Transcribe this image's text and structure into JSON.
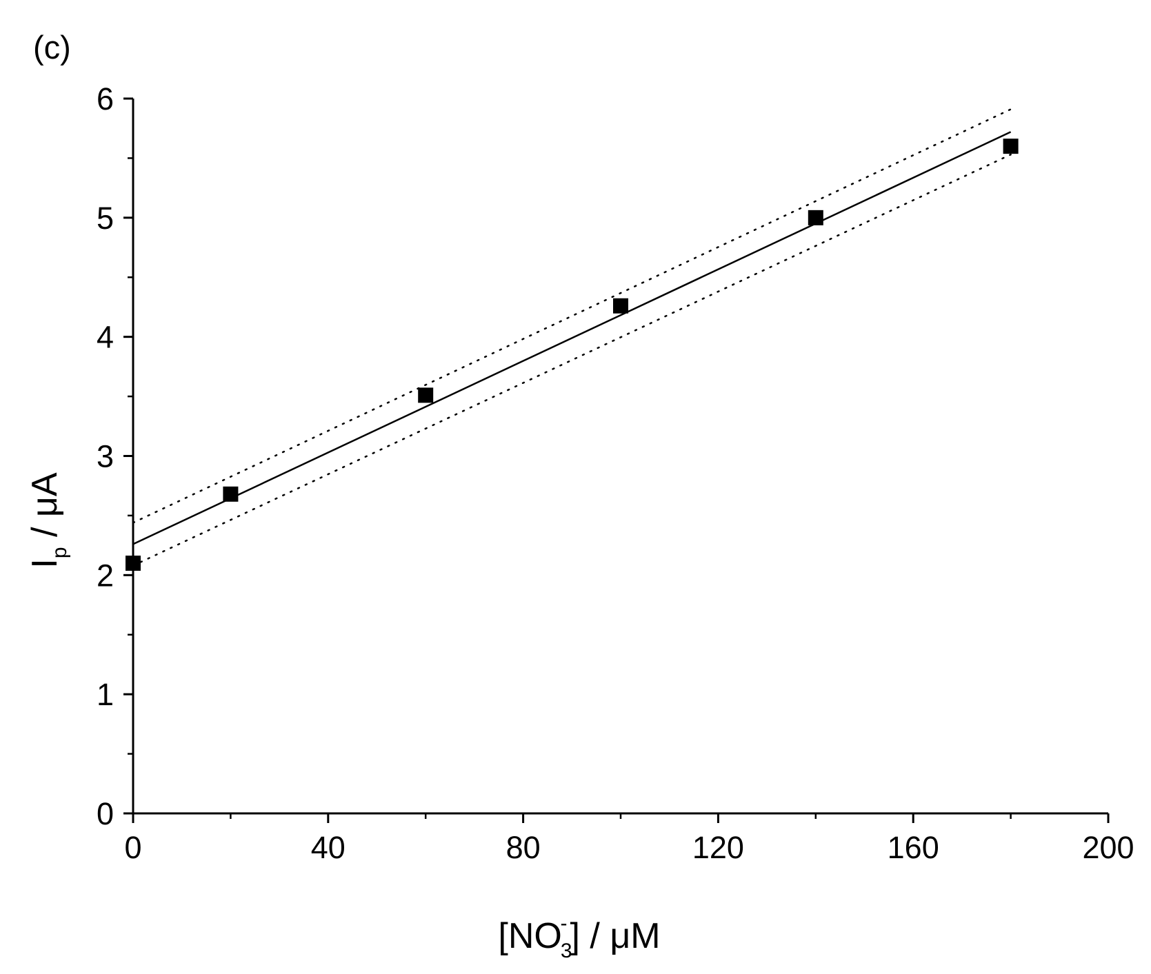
{
  "panel_label": "(c)",
  "chart_data": {
    "type": "scatter",
    "xlabel": {
      "pre": "[NO",
      "sup": "-",
      "sub": "3",
      "post": "] / μM"
    },
    "ylabel": {
      "main": "I",
      "sub": "p",
      "post": " / μA"
    },
    "xlim": [
      0,
      200
    ],
    "ylim": [
      0,
      6
    ],
    "xticks": [
      "0",
      "40",
      "80",
      "120",
      "160",
      "200"
    ],
    "yticks": [
      "0",
      "1",
      "2",
      "3",
      "4",
      "5",
      "6"
    ],
    "grid": false,
    "legend": false,
    "series": [
      {
        "marker": "square",
        "color": "#000000",
        "x": [
          0,
          20,
          60,
          100,
          140,
          180
        ],
        "y": [
          2.1,
          2.68,
          3.51,
          4.26,
          5.0,
          5.6
        ]
      }
    ],
    "fit": {
      "line_style": "solid",
      "x": [
        0,
        180
      ],
      "y": [
        2.26,
        5.72
      ]
    },
    "confidence_band": {
      "line_style": "dotted",
      "upper": {
        "x": [
          0,
          180
        ],
        "y": [
          2.44,
          5.91
        ]
      },
      "lower": {
        "x": [
          0,
          180
        ],
        "y": [
          2.08,
          5.53
        ]
      }
    }
  }
}
